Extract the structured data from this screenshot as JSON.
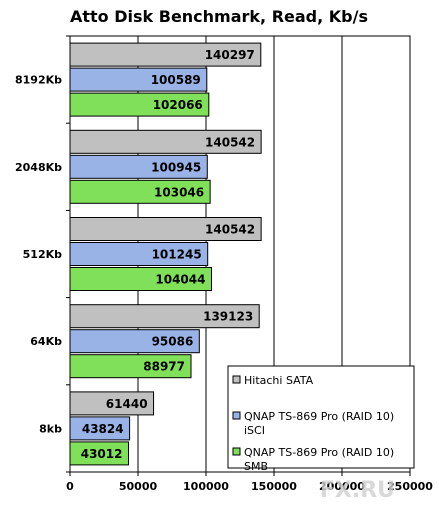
{
  "watermark": "FX.RU",
  "chart_data": {
    "type": "bar",
    "orientation": "horizontal",
    "title": "Atto Disk Benchmark, Read, Kb/s",
    "xlabel": "",
    "ylabel": "",
    "categories": [
      "8192Kb",
      "2048Kb",
      "512Kb",
      "64Kb",
      "8kb"
    ],
    "series": [
      {
        "name": "Hitachi SATA",
        "color": "#c0c0c0",
        "values": [
          140297,
          140542,
          140542,
          139123,
          61440
        ]
      },
      {
        "name": "QNAP TS-869 Pro (RAID 10) iSCI",
        "legend_lines": [
          "QNAP TS-869 Pro (RAID 10)",
          "iSCI"
        ],
        "color": "#99b3e6",
        "values": [
          100589,
          100945,
          101245,
          95086,
          43824
        ]
      },
      {
        "name": "QNAP TS-869 Pro (RAID 10) SMB",
        "legend_lines": [
          "QNAP TS-869 Pro (RAID 10)",
          "SMB"
        ],
        "color": "#80e05a",
        "values": [
          102066,
          103046,
          104044,
          88977,
          43012
        ]
      }
    ],
    "xlim": [
      0,
      250000
    ],
    "xticks": [
      0,
      50000,
      100000,
      150000,
      200000,
      250000
    ],
    "tick_labels": [
      "0",
      "50000",
      "100000",
      "150000",
      "200000",
      "250000"
    ],
    "grid": "vertical",
    "legend_position": "bottom-right"
  }
}
